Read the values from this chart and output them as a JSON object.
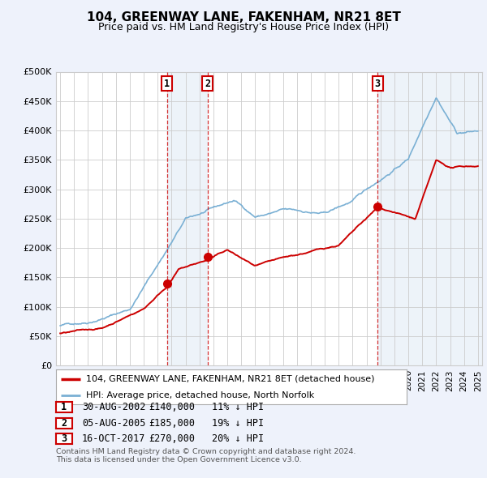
{
  "title": "104, GREENWAY LANE, FAKENHAM, NR21 8ET",
  "subtitle": "Price paid vs. HM Land Registry's House Price Index (HPI)",
  "ylabel_ticks": [
    "£0",
    "£50K",
    "£100K",
    "£150K",
    "£200K",
    "£250K",
    "£300K",
    "£350K",
    "£400K",
    "£450K",
    "£500K"
  ],
  "ytick_values": [
    0,
    50000,
    100000,
    150000,
    200000,
    250000,
    300000,
    350000,
    400000,
    450000,
    500000
  ],
  "ylim": [
    0,
    500000
  ],
  "xlim": [
    1994.7,
    2025.3
  ],
  "xtick_years": [
    1995,
    1996,
    1997,
    1998,
    1999,
    2000,
    2001,
    2002,
    2003,
    2004,
    2005,
    2006,
    2007,
    2008,
    2009,
    2010,
    2011,
    2012,
    2013,
    2014,
    2015,
    2016,
    2017,
    2018,
    2019,
    2020,
    2021,
    2022,
    2023,
    2024,
    2025
  ],
  "transactions": [
    {
      "label": "1",
      "date": "30-AUG-2002",
      "price": 140000,
      "year": 2002.664,
      "hpi_diff": "11% ↓ HPI"
    },
    {
      "label": "2",
      "date": "05-AUG-2005",
      "price": 185000,
      "year": 2005.58,
      "hpi_diff": "19% ↓ HPI"
    },
    {
      "label": "3",
      "date": "16-OCT-2017",
      "price": 270000,
      "year": 2017.79,
      "hpi_diff": "20% ↓ HPI"
    }
  ],
  "legend_line1_label": "104, GREENWAY LANE, FAKENHAM, NR21 8ET (detached house)",
  "legend_line1_color": "#cc0000",
  "legend_line2_label": "HPI: Average price, detached house, North Norfolk",
  "legend_line2_color": "#7ab0d4",
  "footer_line1": "Contains HM Land Registry data © Crown copyright and database right 2024.",
  "footer_line2": "This data is licensed under the Open Government Licence v3.0.",
  "background_color": "#eef2fb",
  "plot_bg_color": "#ffffff",
  "grid_color": "#cccccc",
  "trans_line_color": "#cc0000",
  "trans_fill_color": "#dde8f5"
}
